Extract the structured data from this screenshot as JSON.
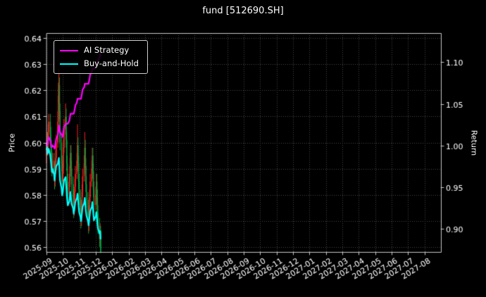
{
  "chart_data": {
    "type": "candlestick",
    "title": "fund [512690.SH]",
    "ylabel_left": "Price",
    "ylabel_right": "Return",
    "grid": "dotted",
    "legend_position": "upper-left",
    "x_range_months": [
      "2025-09",
      "2027-09"
    ],
    "y_left_range": [
      0.558,
      0.642
    ],
    "y_right_range": [
      0.872,
      1.135
    ],
    "y_left_ticks": [
      0.56,
      0.57,
      0.58,
      0.59,
      0.6,
      0.61,
      0.62,
      0.63,
      0.64
    ],
    "y_right_ticks": [
      0.9,
      0.95,
      1.0,
      1.05,
      1.1
    ],
    "x_tick_labels": [
      "2025-09",
      "2025-10",
      "2025-11",
      "2025-12",
      "2026-01",
      "2026-02",
      "2026-03",
      "2026-04",
      "2026-05",
      "2026-06",
      "2026-07",
      "2026-08",
      "2026-09",
      "2026-10",
      "2026-11",
      "2026-12",
      "2027-01",
      "2027-02",
      "2027-03",
      "2027-04",
      "2027-05",
      "2027-06",
      "2027-07",
      "2027-08"
    ],
    "colors": {
      "background": "#000000",
      "text": "#ffffff",
      "grid": "#4a4a4a",
      "spine": "#c8c8c8",
      "up": "#ff1f1f",
      "down": "#00a13e",
      "ai": "#ff00ff",
      "hold": "#00ffff"
    },
    "candles": {
      "dates": [
        "2025-09-01",
        "2025-09-02",
        "2025-09-03",
        "2025-09-04",
        "2025-09-05",
        "2025-09-08",
        "2025-09-09",
        "2025-09-10",
        "2025-09-11",
        "2025-09-12",
        "2025-09-15",
        "2025-09-16",
        "2025-09-17",
        "2025-09-18",
        "2025-09-19",
        "2025-09-22",
        "2025-09-23",
        "2025-09-24",
        "2025-09-25",
        "2025-09-26",
        "2025-09-29",
        "2025-09-30",
        "2025-10-01",
        "2025-10-02",
        "2025-10-03",
        "2025-10-06",
        "2025-10-07",
        "2025-10-08",
        "2025-10-09",
        "2025-10-10",
        "2025-10-13",
        "2025-10-14",
        "2025-10-15",
        "2025-10-16",
        "2025-10-17",
        "2025-10-20",
        "2025-10-21",
        "2025-10-22",
        "2025-10-23",
        "2025-10-24",
        "2025-10-27",
        "2025-10-28",
        "2025-10-29",
        "2025-10-30",
        "2025-10-31",
        "2025-11-03",
        "2025-11-04",
        "2025-11-05",
        "2025-11-06",
        "2025-11-07",
        "2025-11-10",
        "2025-11-11",
        "2025-11-12",
        "2025-11-13",
        "2025-11-14",
        "2025-11-17",
        "2025-11-18",
        "2025-11-19",
        "2025-11-20",
        "2025-11-21",
        "2025-11-24",
        "2025-11-25",
        "2025-11-26",
        "2025-11-27",
        "2025-11-28",
        "2025-12-01",
        "2025-12-02",
        "2025-12-03",
        "2025-12-04",
        "2025-12-05",
        "2025-12-08",
        "2025-12-09",
        "2025-12-10"
      ],
      "open": [
        0.595,
        0.597,
        0.601,
        0.598,
        0.604,
        0.608,
        0.603,
        0.598,
        0.594,
        0.59,
        0.593,
        0.589,
        0.585,
        0.59,
        0.594,
        0.6,
        0.608,
        0.618,
        0.622,
        0.612,
        0.6,
        0.592,
        0.585,
        0.59,
        0.598,
        0.605,
        0.61,
        0.601,
        0.592,
        0.585,
        0.58,
        0.585,
        0.591,
        0.596,
        0.59,
        0.584,
        0.579,
        0.574,
        0.578,
        0.583,
        0.588,
        0.593,
        0.599,
        0.592,
        0.585,
        0.579,
        0.574,
        0.57,
        0.575,
        0.581,
        0.587,
        0.592,
        0.598,
        0.591,
        0.584,
        0.578,
        0.572,
        0.568,
        0.573,
        0.579,
        0.585,
        0.59,
        0.595,
        0.589,
        0.582,
        0.576,
        0.58,
        0.585,
        0.579,
        0.573,
        0.568,
        0.563,
        0.566
      ],
      "high": [
        0.6,
        0.604,
        0.604,
        0.607,
        0.611,
        0.611,
        0.606,
        0.601,
        0.597,
        0.596,
        0.596,
        0.592,
        0.593,
        0.597,
        0.603,
        0.612,
        0.623,
        0.628,
        0.625,
        0.615,
        0.603,
        0.595,
        0.593,
        0.601,
        0.609,
        0.615,
        0.613,
        0.604,
        0.595,
        0.588,
        0.588,
        0.594,
        0.599,
        0.599,
        0.593,
        0.587,
        0.582,
        0.581,
        0.586,
        0.591,
        0.596,
        0.607,
        0.602,
        0.595,
        0.588,
        0.582,
        0.577,
        0.578,
        0.584,
        0.59,
        0.595,
        0.604,
        0.601,
        0.594,
        0.587,
        0.581,
        0.575,
        0.576,
        0.582,
        0.588,
        0.593,
        0.598,
        0.598,
        0.592,
        0.585,
        0.583,
        0.588,
        0.588,
        0.582,
        0.576,
        0.571,
        0.569,
        0.568
      ],
      "low": [
        0.592,
        0.595,
        0.595,
        0.596,
        0.602,
        0.6,
        0.595,
        0.591,
        0.587,
        0.588,
        0.586,
        0.582,
        0.583,
        0.588,
        0.592,
        0.598,
        0.606,
        0.615,
        0.609,
        0.597,
        0.589,
        0.582,
        0.583,
        0.588,
        0.596,
        0.603,
        0.598,
        0.589,
        0.582,
        0.577,
        0.578,
        0.583,
        0.589,
        0.587,
        0.581,
        0.576,
        0.571,
        0.572,
        0.576,
        0.581,
        0.586,
        0.591,
        0.589,
        0.582,
        0.576,
        0.571,
        0.567,
        0.568,
        0.573,
        0.579,
        0.585,
        0.59,
        0.588,
        0.581,
        0.575,
        0.569,
        0.565,
        0.566,
        0.571,
        0.577,
        0.583,
        0.588,
        0.586,
        0.579,
        0.573,
        0.574,
        0.578,
        0.576,
        0.57,
        0.565,
        0.56,
        0.561,
        0.5575
      ],
      "close": [
        0.597,
        0.601,
        0.598,
        0.604,
        0.608,
        0.603,
        0.598,
        0.594,
        0.59,
        0.593,
        0.589,
        0.585,
        0.59,
        0.594,
        0.6,
        0.608,
        0.618,
        0.622,
        0.612,
        0.6,
        0.592,
        0.585,
        0.59,
        0.598,
        0.605,
        0.61,
        0.601,
        0.592,
        0.585,
        0.58,
        0.585,
        0.591,
        0.596,
        0.59,
        0.584,
        0.579,
        0.574,
        0.578,
        0.583,
        0.588,
        0.593,
        0.599,
        0.592,
        0.585,
        0.579,
        0.574,
        0.57,
        0.575,
        0.581,
        0.587,
        0.592,
        0.598,
        0.591,
        0.584,
        0.578,
        0.572,
        0.568,
        0.573,
        0.579,
        0.585,
        0.59,
        0.595,
        0.589,
        0.582,
        0.576,
        0.58,
        0.585,
        0.579,
        0.573,
        0.568,
        0.563,
        0.566,
        0.558
      ]
    },
    "series": [
      {
        "name": "AI Strategy",
        "color": "#ff00ff",
        "axis": "right",
        "values": [
          1.0,
          1.003,
          1.001,
          1.006,
          1.01,
          1.006,
          1.002,
          1.0,
          0.998,
          1.0,
          0.998,
          0.996,
          1.0,
          1.004,
          1.008,
          1.012,
          1.018,
          1.024,
          1.02,
          1.016,
          1.013,
          1.01,
          1.013,
          1.017,
          1.022,
          1.026,
          1.026,
          1.026,
          1.026,
          1.026,
          1.03,
          1.034,
          1.038,
          1.038,
          1.038,
          1.038,
          1.038,
          1.041,
          1.044,
          1.048,
          1.052,
          1.056,
          1.056,
          1.056,
          1.056,
          1.056,
          1.056,
          1.059,
          1.063,
          1.067,
          1.07,
          1.074,
          1.074,
          1.074,
          1.074,
          1.074,
          1.074,
          1.077,
          1.081,
          1.085,
          1.088,
          1.092,
          1.092,
          1.092,
          1.092,
          1.095,
          1.099,
          1.099,
          1.099,
          1.102,
          1.106,
          1.11,
          1.108
        ]
      },
      {
        "name": "Buy-and-Hold",
        "color": "#00ffff",
        "axis": "right",
        "values": [
          0.995,
          0.998,
          0.99,
          0.993,
          0.996,
          0.988,
          0.982,
          0.975,
          0.968,
          0.972,
          0.965,
          0.958,
          0.965,
          0.97,
          0.975,
          0.978,
          0.982,
          0.985,
          0.972,
          0.958,
          0.948,
          0.94,
          0.945,
          0.952,
          0.958,
          0.962,
          0.952,
          0.942,
          0.934,
          0.928,
          0.933,
          0.939,
          0.944,
          0.937,
          0.93,
          0.924,
          0.918,
          0.922,
          0.927,
          0.932,
          0.937,
          0.942,
          0.935,
          0.927,
          0.92,
          0.914,
          0.909,
          0.914,
          0.92,
          0.926,
          0.931,
          0.937,
          0.93,
          0.922,
          0.916,
          0.909,
          0.904,
          0.909,
          0.915,
          0.921,
          0.926,
          0.932,
          0.925,
          0.917,
          0.91,
          0.915,
          0.92,
          0.913,
          0.906,
          0.9,
          0.894,
          0.897,
          0.888
        ]
      }
    ]
  }
}
